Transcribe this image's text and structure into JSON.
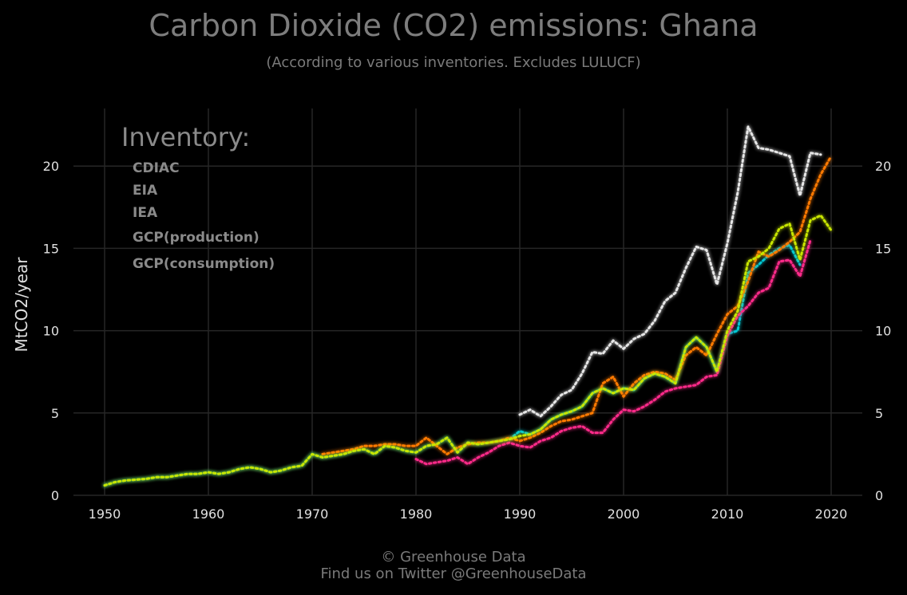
{
  "colors": {
    "background": "#000000",
    "grid": "#262626",
    "CDIAC": "#00c8d4",
    "EIA": "#ff2a8a",
    "IEA": "#ff7a00",
    "GCP(production)": "#c8e600",
    "GCP(consumption)": "#e6e6e6"
  },
  "footer": {
    "line1": "© Greenhouse Data",
    "line2": "Find us on Twitter @GreenhouseData"
  },
  "chart_data": {
    "type": "line",
    "title": "Carbon Dioxide (CO2) emissions: Ghana",
    "subtitle": "(According to various inventories. Excludes LULUCF)",
    "ylabel": "MtCO2/year",
    "xlabel": "",
    "xlim": [
      1947,
      2023
    ],
    "ylim": [
      0,
      23.5
    ],
    "xticks": [
      1950,
      1960,
      1970,
      1980,
      1990,
      2000,
      2010,
      2020
    ],
    "yticks": [
      0,
      5,
      10,
      15,
      20
    ],
    "grid": true,
    "legend": {
      "title": "Inventory:",
      "placement": "top-left"
    },
    "series": [
      {
        "name": "CDIAC",
        "x": [
          1950,
          1951,
          1952,
          1953,
          1954,
          1955,
          1956,
          1957,
          1958,
          1959,
          1960,
          1961,
          1962,
          1963,
          1964,
          1965,
          1966,
          1967,
          1968,
          1969,
          1970,
          1971,
          1972,
          1973,
          1974,
          1975,
          1976,
          1977,
          1978,
          1979,
          1980,
          1981,
          1982,
          1983,
          1984,
          1985,
          1986,
          1987,
          1988,
          1989,
          1990,
          1991,
          1992,
          1993,
          1994,
          1995,
          1996,
          1997,
          1998,
          1999,
          2000,
          2001,
          2002,
          2003,
          2004,
          2005,
          2006,
          2007,
          2008,
          2009,
          2010,
          2011,
          2012,
          2013,
          2014,
          2015,
          2016,
          2017
        ],
        "y": [
          0.6,
          0.8,
          0.9,
          0.95,
          1.0,
          1.1,
          1.1,
          1.2,
          1.3,
          1.3,
          1.4,
          1.3,
          1.4,
          1.6,
          1.7,
          1.6,
          1.4,
          1.5,
          1.7,
          1.8,
          2.5,
          2.3,
          2.4,
          2.5,
          2.7,
          2.8,
          2.5,
          3.0,
          2.9,
          2.7,
          2.6,
          3.0,
          3.1,
          3.5,
          2.6,
          3.2,
          3.1,
          3.2,
          3.3,
          3.4,
          3.9,
          3.7,
          4.0,
          4.6,
          4.9,
          5.1,
          5.4,
          6.2,
          6.5,
          6.2,
          6.5,
          6.4,
          7.1,
          7.4,
          7.2,
          6.8,
          9.0,
          9.6,
          9.0,
          7.5,
          9.8,
          10.0,
          13.5,
          14.0,
          14.6,
          15.0,
          15.2,
          14.0
        ]
      },
      {
        "name": "EIA",
        "x": [
          1980,
          1981,
          1982,
          1983,
          1984,
          1985,
          1986,
          1987,
          1988,
          1989,
          1990,
          1991,
          1992,
          1993,
          1994,
          1995,
          1996,
          1997,
          1998,
          1999,
          2000,
          2001,
          2002,
          2003,
          2004,
          2005,
          2006,
          2007,
          2008,
          2009,
          2010,
          2011,
          2012,
          2013,
          2014,
          2015,
          2016,
          2017,
          2018
        ],
        "y": [
          2.2,
          1.9,
          2.0,
          2.1,
          2.3,
          1.9,
          2.3,
          2.6,
          3.0,
          3.2,
          3.0,
          2.9,
          3.3,
          3.5,
          3.9,
          4.1,
          4.2,
          3.8,
          3.8,
          4.6,
          5.2,
          5.1,
          5.4,
          5.8,
          6.3,
          6.5,
          6.6,
          6.7,
          7.2,
          7.3,
          9.7,
          10.9,
          11.5,
          12.3,
          12.6,
          14.2,
          14.3,
          13.3,
          15.5
        ]
      },
      {
        "name": "IEA",
        "x": [
          1971,
          1972,
          1973,
          1974,
          1975,
          1976,
          1977,
          1978,
          1979,
          1980,
          1981,
          1982,
          1983,
          1984,
          1985,
          1986,
          1987,
          1988,
          1989,
          1990,
          1991,
          1992,
          1993,
          1994,
          1995,
          1996,
          1997,
          1998,
          1999,
          2000,
          2001,
          2002,
          2003,
          2004,
          2005,
          2006,
          2007,
          2008,
          2009,
          2010,
          2011,
          2012,
          2013,
          2014,
          2015,
          2016,
          2017,
          2018,
          2019,
          2020
        ],
        "y": [
          2.5,
          2.6,
          2.7,
          2.8,
          3.0,
          3.0,
          3.1,
          3.1,
          3.0,
          3.0,
          3.5,
          3.0,
          2.5,
          2.9,
          3.1,
          3.2,
          3.2,
          3.3,
          3.5,
          3.3,
          3.5,
          3.8,
          4.2,
          4.5,
          4.6,
          4.8,
          5.0,
          6.8,
          7.2,
          6.0,
          6.8,
          7.3,
          7.5,
          7.4,
          7.0,
          8.5,
          9.0,
          8.5,
          9.8,
          11.0,
          11.5,
          13.0,
          14.8,
          14.5,
          14.9,
          15.4,
          16.0,
          18.0,
          19.5,
          20.6
        ]
      },
      {
        "name": "GCP(production)",
        "x": [
          1950,
          1951,
          1952,
          1953,
          1954,
          1955,
          1956,
          1957,
          1958,
          1959,
          1960,
          1961,
          1962,
          1963,
          1964,
          1965,
          1966,
          1967,
          1968,
          1969,
          1970,
          1971,
          1972,
          1973,
          1974,
          1975,
          1976,
          1977,
          1978,
          1979,
          1980,
          1981,
          1982,
          1983,
          1984,
          1985,
          1986,
          1987,
          1988,
          1989,
          1990,
          1991,
          1992,
          1993,
          1994,
          1995,
          1996,
          1997,
          1998,
          1999,
          2000,
          2001,
          2002,
          2003,
          2004,
          2005,
          2006,
          2007,
          2008,
          2009,
          2010,
          2011,
          2012,
          2013,
          2014,
          2015,
          2016,
          2017,
          2018,
          2019,
          2020
        ],
        "y": [
          0.6,
          0.8,
          0.9,
          0.95,
          1.0,
          1.1,
          1.1,
          1.2,
          1.3,
          1.3,
          1.4,
          1.3,
          1.4,
          1.6,
          1.7,
          1.6,
          1.4,
          1.5,
          1.7,
          1.8,
          2.5,
          2.3,
          2.4,
          2.5,
          2.7,
          2.8,
          2.5,
          3.0,
          2.9,
          2.7,
          2.6,
          3.0,
          3.1,
          3.5,
          2.6,
          3.2,
          3.1,
          3.2,
          3.3,
          3.4,
          3.6,
          3.7,
          4.0,
          4.6,
          4.9,
          5.1,
          5.4,
          6.2,
          6.5,
          6.2,
          6.5,
          6.4,
          7.1,
          7.4,
          7.2,
          6.8,
          9.0,
          9.6,
          9.0,
          7.5,
          10.0,
          11.2,
          14.2,
          14.5,
          15.0,
          16.2,
          16.5,
          14.3,
          16.7,
          17.0,
          16.1
        ]
      },
      {
        "name": "GCP(consumption)",
        "x": [
          1990,
          1991,
          1992,
          1993,
          1994,
          1995,
          1996,
          1997,
          1998,
          1999,
          2000,
          2001,
          2002,
          2003,
          2004,
          2005,
          2006,
          2007,
          2008,
          2009,
          2010,
          2011,
          2012,
          2013,
          2014,
          2015,
          2016,
          2017,
          2018,
          2019
        ],
        "y": [
          4.9,
          5.2,
          4.8,
          5.4,
          6.1,
          6.4,
          7.4,
          8.7,
          8.6,
          9.4,
          8.9,
          9.5,
          9.8,
          10.6,
          11.8,
          12.3,
          13.8,
          15.1,
          14.9,
          12.8,
          15.3,
          18.4,
          22.4,
          21.1,
          21.0,
          20.8,
          20.6,
          18.2,
          20.8,
          20.7
        ]
      }
    ]
  }
}
